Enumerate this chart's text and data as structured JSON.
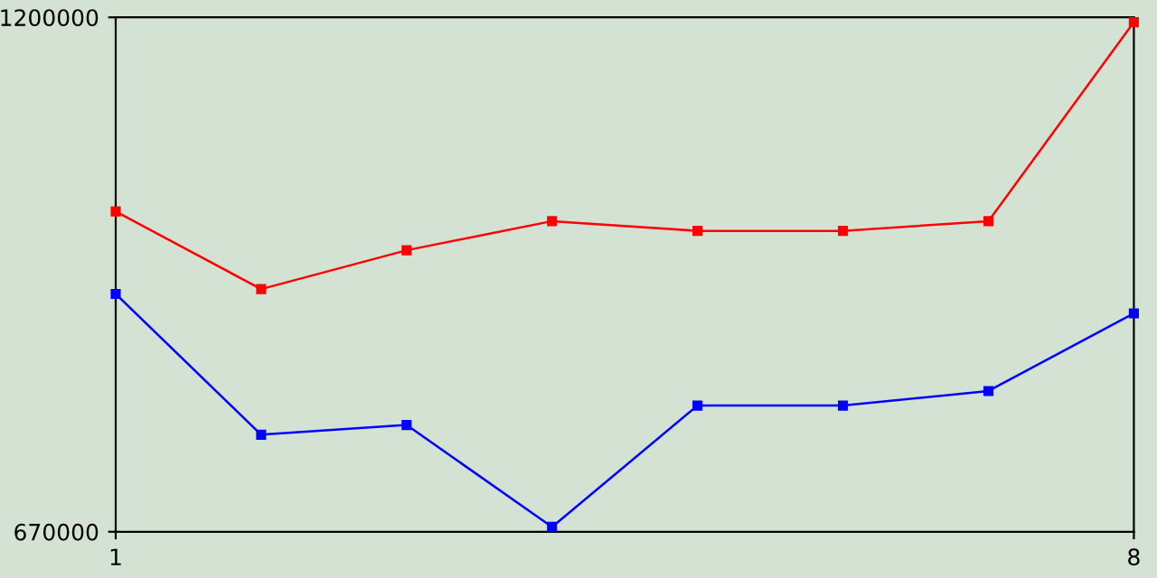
{
  "chart_data": {
    "type": "line",
    "x": [
      1,
      2,
      3,
      4,
      5,
      6,
      7,
      8
    ],
    "xlim": [
      1,
      8
    ],
    "xticks": [
      1,
      8
    ],
    "ylim": [
      670000,
      1200000
    ],
    "yticks": [
      670000,
      1200000
    ],
    "marker": "square",
    "line_style": "solid",
    "grid": false,
    "legend": false,
    "series": [
      {
        "color": "#ff0000",
        "values": [
          1000000,
          920000,
          960000,
          990000,
          980000,
          980000,
          990000,
          1195000
        ]
      },
      {
        "color": "#0000ff",
        "values": [
          915000,
          770000,
          780000,
          675000,
          800000,
          800000,
          815000,
          895000
        ]
      }
    ]
  }
}
